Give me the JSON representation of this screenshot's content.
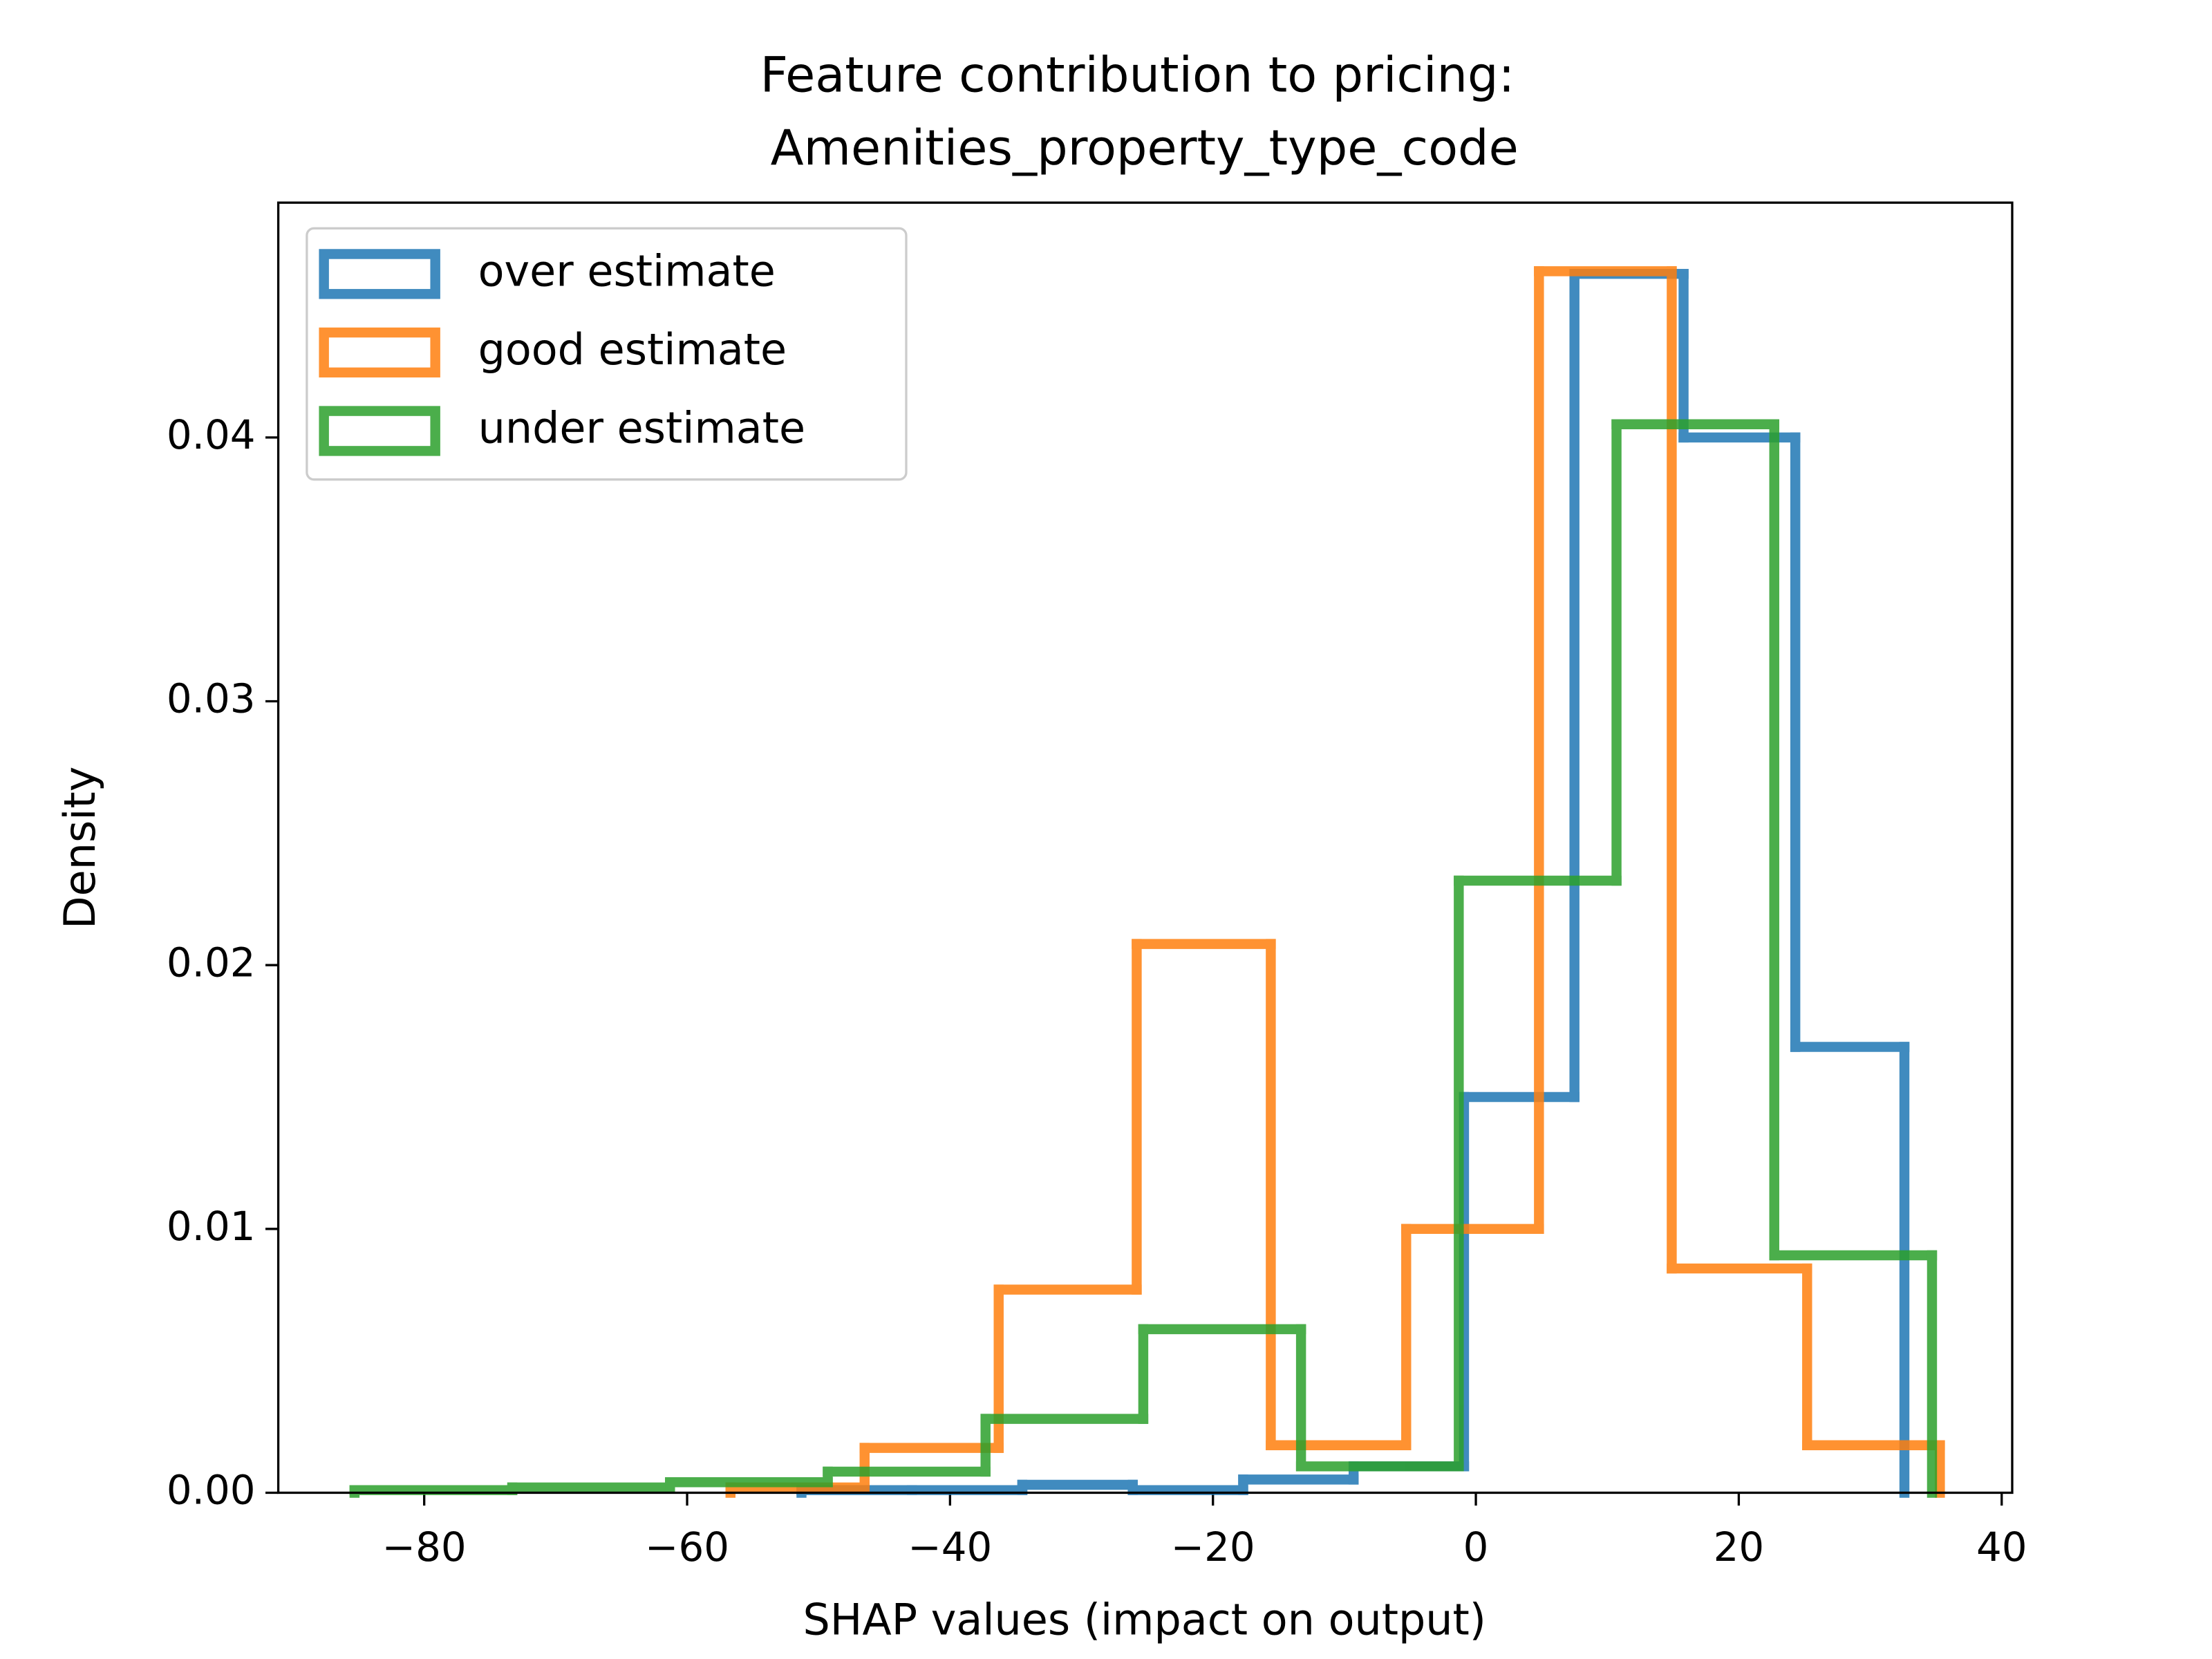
{
  "chart_data": {
    "type": "histogram",
    "histtype": "step",
    "title": [
      "Feature contribution to pricing:",
      "Amenities_property_type_code"
    ],
    "xlabel": "SHAP values (impact on output)",
    "ylabel": "Density",
    "xlim": [
      -91.1,
      40.8
    ],
    "ylim": [
      0,
      0.0489
    ],
    "xticks": [
      {
        "value": -80,
        "label": "−80"
      },
      {
        "value": -60,
        "label": "−60"
      },
      {
        "value": -40,
        "label": "−40"
      },
      {
        "value": -20,
        "label": "−20"
      },
      0,
      20,
      40
    ],
    "yticks": [
      {
        "value": 0,
        "label": "0.00"
      },
      {
        "value": 0.01,
        "label": "0.01"
      },
      {
        "value": 0.02,
        "label": "0.02"
      },
      {
        "value": 0.03,
        "label": "0.03"
      },
      {
        "value": 0.04,
        "label": "0.04"
      }
    ],
    "legend": "upper left",
    "grid": false,
    "series": [
      {
        "name": "over estimate",
        "color": "#1f77b4",
        "bins": [
          -51.3,
          -42.9,
          -34.5,
          -26.1,
          -17.7,
          -9.3,
          -0.9,
          7.5,
          15.8,
          24.3,
          32.6
        ],
        "values": [
          0.0001,
          0.0001,
          0.0003,
          0.0001,
          0.0005,
          0.001,
          0.015,
          0.0462,
          0.04,
          0.0169
        ]
      },
      {
        "name": "good estimate",
        "color": "#ff7f0e",
        "bins": [
          -56.7,
          -46.5,
          -36.3,
          -25.8,
          -15.6,
          -5.3,
          4.8,
          14.9,
          25.2,
          35.3
        ],
        "values": [
          0.0002,
          0.0017,
          0.0077,
          0.0208,
          0.0018,
          0.01,
          0.0463,
          0.0085,
          0.0018
        ]
      },
      {
        "name": "under estimate",
        "color": "#2ca02c",
        "bins": [
          -85.3,
          -73.3,
          -61.3,
          -49.3,
          -37.3,
          -25.3,
          -13.3,
          -1.3,
          10.7,
          22.7,
          34.7
        ],
        "values": [
          0.0001,
          0.0002,
          0.0004,
          0.0008,
          0.0028,
          0.0062,
          0.001,
          0.0232,
          0.0405,
          0.009
        ]
      }
    ]
  }
}
